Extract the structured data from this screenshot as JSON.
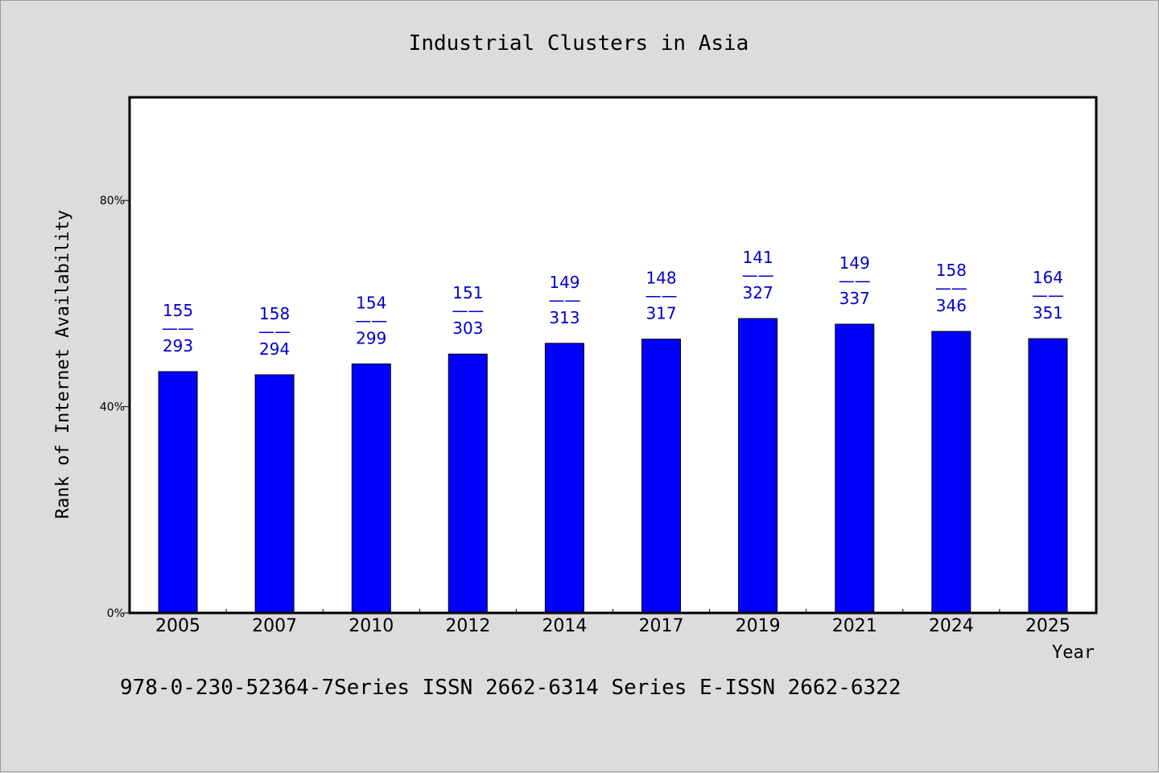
{
  "chart_data": {
    "type": "bar",
    "title": "Industrial Clusters in Asia",
    "xlabel": "Year",
    "ylabel": "Rank of Internet Availability",
    "categories": [
      "2005",
      "2007",
      "2010",
      "2012",
      "2014",
      "2017",
      "2019",
      "2021",
      "2024",
      "2025"
    ],
    "values": [
      46.8,
      46.2,
      48.3,
      50.2,
      52.3,
      53.1,
      57.1,
      56.0,
      54.6,
      53.2
    ],
    "value_unit": "%",
    "ylim": [
      0,
      100
    ],
    "yticks": [
      {
        "value": 0,
        "label": "0%"
      },
      {
        "value": 40,
        "label": "40%"
      },
      {
        "value": 80,
        "label": "80%"
      }
    ],
    "data_labels": [
      {
        "top": "155",
        "sep": "——",
        "bottom": "293"
      },
      {
        "top": "158",
        "sep": "——",
        "bottom": "294"
      },
      {
        "top": "154",
        "sep": "——",
        "bottom": "299"
      },
      {
        "top": "151",
        "sep": "——",
        "bottom": "303"
      },
      {
        "top": "149",
        "sep": "——",
        "bottom": "313"
      },
      {
        "top": "148",
        "sep": "——",
        "bottom": "317"
      },
      {
        "top": "141",
        "sep": "——",
        "bottom": "327"
      },
      {
        "top": "149",
        "sep": "——",
        "bottom": "337"
      },
      {
        "top": "158",
        "sep": "——",
        "bottom": "346"
      },
      {
        "top": "164",
        "sep": "——",
        "bottom": "351"
      }
    ],
    "grid": false,
    "legend": "none",
    "bar_color": "#0000ff",
    "label_color": "#0000cc"
  },
  "footer": {
    "text": "978-0-230-52364-7Series ISSN 2662-6314 Series E-ISSN 2662-6322"
  }
}
